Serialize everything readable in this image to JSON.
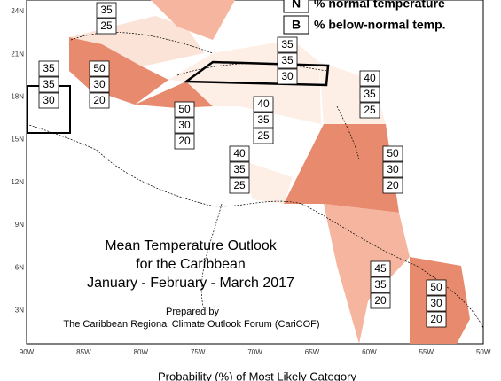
{
  "legend": {
    "items": [
      {
        "key": "N",
        "text": "% normal temperature"
      },
      {
        "key": "B",
        "text": "% below-normal temp."
      }
    ]
  },
  "axes": {
    "lat_labels": [
      "24N",
      "21N",
      "18N",
      "15N",
      "12N",
      "9N",
      "6N",
      "3N"
    ],
    "lon_labels": [
      "90W",
      "85W",
      "80W",
      "75W",
      "70W",
      "65W",
      "60W",
      "55W",
      "50W"
    ]
  },
  "title": {
    "lines": [
      "Mean Temperature Outlook",
      "for the Caribbean",
      "January - February - March 2017"
    ]
  },
  "credit": {
    "lines": [
      "Prepared by",
      "The Caribbean Regional Climate Outlook Forum (CariCOF)"
    ]
  },
  "caption": "Probability (%) of Most Likely Category",
  "regions": [
    {
      "values": [
        35,
        25
      ]
    },
    {
      "values": [
        35,
        35,
        30
      ]
    },
    {
      "values": [
        50,
        30,
        20
      ]
    },
    {
      "values": [
        50,
        30,
        20
      ]
    },
    {
      "values": [
        40,
        35,
        25
      ]
    },
    {
      "values": [
        35,
        35,
        30
      ]
    },
    {
      "values": [
        40,
        35,
        25
      ]
    },
    {
      "values": [
        50,
        30,
        20
      ]
    },
    {
      "values": [
        40,
        35,
        25
      ]
    },
    {
      "values": [
        45,
        35,
        20
      ]
    },
    {
      "values": [
        50,
        30,
        20
      ]
    }
  ]
}
